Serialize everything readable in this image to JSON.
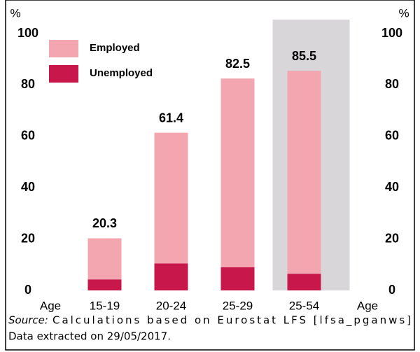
{
  "chart_data": {
    "type": "stacked_bar",
    "y_label": "%",
    "y2_label": "%",
    "x_label": "Age",
    "categories": [
      "15-19",
      "20-24",
      "25-29",
      "25-54"
    ],
    "series": [
      {
        "name": "Unemployed",
        "color": "#c8174a",
        "values": [
          4.3,
          10.5,
          9.0,
          6.5
        ]
      },
      {
        "name": "Employed",
        "color": "#f4a6b0",
        "values": [
          16.0,
          50.9,
          73.5,
          79.0
        ]
      }
    ],
    "totals": [
      20.3,
      61.4,
      82.5,
      85.5
    ],
    "ylim": [
      0,
      100
    ],
    "yticks": [
      0,
      20,
      40,
      60,
      80,
      100
    ],
    "y2lim": [
      0,
      100
    ],
    "y2ticks": [
      0,
      20,
      40,
      60,
      80,
      100
    ],
    "highlight_index": 3,
    "highlight_color": "#d9d6da",
    "legend": "upper left",
    "source_label": "Source:",
    "source": "Calculations based on Eurostat LFS [lfsa_pganws]",
    "note": "Data extracted on 29/05/2017."
  }
}
